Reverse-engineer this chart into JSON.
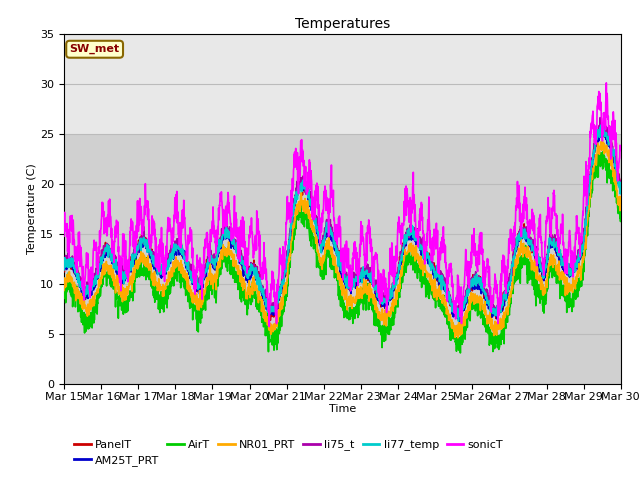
{
  "title": "Temperatures",
  "xlabel": "Time",
  "ylabel": "Temperature (C)",
  "ylim": [
    0,
    35
  ],
  "xlim": [
    0,
    15
  ],
  "x_tick_labels": [
    "Mar 15",
    "Mar 16",
    "Mar 17",
    "Mar 18",
    "Mar 19",
    "Mar 20",
    "Mar 21",
    "Mar 22",
    "Mar 23",
    "Mar 24",
    "Mar 25",
    "Mar 26",
    "Mar 27",
    "Mar 28",
    "Mar 29",
    "Mar 30"
  ],
  "series_colors": {
    "PanelT": "#cc0000",
    "AM25T_PRT": "#0000cc",
    "AirT": "#00cc00",
    "NR01_PRT": "#ffaa00",
    "li75_t": "#aa00aa",
    "li77_temp": "#00cccc",
    "sonicT": "#ff00ff"
  },
  "annotation_text": "SW_met",
  "annotation_bg": "#ffffcc",
  "annotation_border": "#886600",
  "annotation_text_color": "#880000",
  "bg_color_lower": "#d8d8d8",
  "bg_color_upper": "#e8e8e8",
  "band_threshold": 27,
  "linewidth": 1.2,
  "n_points": 2000
}
